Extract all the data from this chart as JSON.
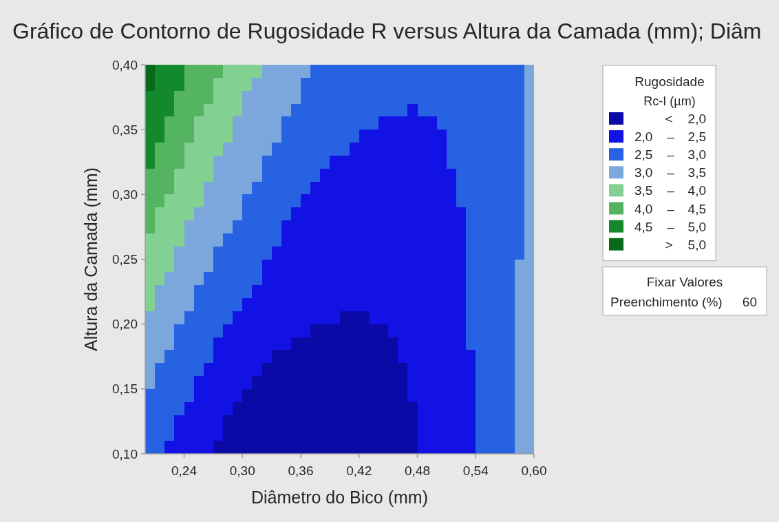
{
  "chart_data": {
    "type": "heatmap",
    "title": "Gráfico de Contorno de Rugosidade R versus Altura da Camada (mm); Diâm",
    "xlabel": "Diâmetro do Bico (mm)",
    "ylabel": "Altura da Camada (mm)",
    "legend_title": "Rugosidade\nRc-I (µm)",
    "annotations": [
      "Fixar Valores",
      "Preenchimento (%)",
      "60"
    ],
    "xlim": [
      0.2,
      0.6
    ],
    "ylim": [
      0.1,
      0.4
    ],
    "xticks": [
      {
        "value": 0.24,
        "label": "0,24"
      },
      {
        "value": 0.3,
        "label": "0,30"
      },
      {
        "value": 0.36,
        "label": "0,36"
      },
      {
        "value": 0.42,
        "label": "0,42"
      },
      {
        "value": 0.48,
        "label": "0,48"
      },
      {
        "value": 0.54,
        "label": "0,54"
      },
      {
        "value": 0.6,
        "label": "0,60"
      }
    ],
    "yticks": [
      {
        "value": 0.1,
        "label": "0,10"
      },
      {
        "value": 0.15,
        "label": "0,15"
      },
      {
        "value": 0.2,
        "label": "0,20"
      },
      {
        "value": 0.25,
        "label": "0,25"
      },
      {
        "value": 0.3,
        "label": "0,30"
      },
      {
        "value": 0.35,
        "label": "0,35"
      },
      {
        "value": 0.4,
        "label": "0,40"
      }
    ],
    "cticks": [
      {
        "value": 1.75,
        "label": "< 2,0"
      },
      {
        "value": 2.25,
        "label": "2,0 – 2,5"
      },
      {
        "value": 2.75,
        "label": "2,5 – 3,0"
      },
      {
        "value": 3.25,
        "label": "3,0 – 3,5"
      },
      {
        "value": 3.75,
        "label": "3,5 – 4,0"
      },
      {
        "value": 4.25,
        "label": "4,0 – 4,5"
      },
      {
        "value": 4.75,
        "label": "4,5 – 5,0"
      },
      {
        "value": 5.25,
        "label": "> 5,0"
      }
    ],
    "colors": [
      "#0c0aa6",
      "#1212e4",
      "#2762e2",
      "#7ca7dc",
      "#82d192",
      "#55b462",
      "#12892c",
      "#066a1a"
    ],
    "cells": [
      [
        5.25,
        4.75,
        4.75,
        4.75,
        4.25,
        4.25,
        4.25,
        4.25,
        3.75,
        3.75,
        3.75,
        3.75,
        3.25,
        3.25,
        3.25,
        3.25,
        3.25,
        2.75,
        2.75,
        2.75,
        2.75,
        2.75,
        2.75,
        2.75,
        2.75,
        2.75,
        2.75,
        2.75,
        2.75,
        2.75,
        2.75,
        2.75,
        2.75,
        2.75,
        2.75,
        2.75,
        2.75,
        2.75,
        2.75,
        3.25
      ],
      [
        5.25,
        4.75,
        4.75,
        4.75,
        4.25,
        4.25,
        4.25,
        3.75,
        3.75,
        3.75,
        3.75,
        3.25,
        3.25,
        3.25,
        3.25,
        3.25,
        2.75,
        2.75,
        2.75,
        2.75,
        2.75,
        2.75,
        2.75,
        2.75,
        2.75,
        2.75,
        2.75,
        2.75,
        2.75,
        2.75,
        2.75,
        2.75,
        2.75,
        2.75,
        2.75,
        2.75,
        2.75,
        2.75,
        2.75,
        3.25
      ],
      [
        4.75,
        4.75,
        4.75,
        4.25,
        4.25,
        4.25,
        4.25,
        3.75,
        3.75,
        3.75,
        3.25,
        3.25,
        3.25,
        3.25,
        3.25,
        3.25,
        2.75,
        2.75,
        2.75,
        2.75,
        2.75,
        2.75,
        2.75,
        2.75,
        2.75,
        2.75,
        2.75,
        2.75,
        2.75,
        2.75,
        2.75,
        2.75,
        2.75,
        2.75,
        2.75,
        2.75,
        2.75,
        2.75,
        2.75,
        3.25
      ],
      [
        4.75,
        4.75,
        4.75,
        4.25,
        4.25,
        4.25,
        3.75,
        3.75,
        3.75,
        3.75,
        3.25,
        3.25,
        3.25,
        3.25,
        3.25,
        2.75,
        2.75,
        2.75,
        2.75,
        2.75,
        2.75,
        2.75,
        2.75,
        2.75,
        2.75,
        2.75,
        2.75,
        2.25,
        2.75,
        2.75,
        2.75,
        2.75,
        2.75,
        2.75,
        2.75,
        2.75,
        2.75,
        2.75,
        2.75,
        3.25
      ],
      [
        4.75,
        4.75,
        4.25,
        4.25,
        4.25,
        3.75,
        3.75,
        3.75,
        3.75,
        3.25,
        3.25,
        3.25,
        3.25,
        3.25,
        2.75,
        2.75,
        2.75,
        2.75,
        2.75,
        2.75,
        2.75,
        2.75,
        2.75,
        2.75,
        2.25,
        2.25,
        2.25,
        2.25,
        2.25,
        2.25,
        2.75,
        2.75,
        2.75,
        2.75,
        2.75,
        2.75,
        2.75,
        2.75,
        2.75,
        3.25
      ],
      [
        4.75,
        4.75,
        4.25,
        4.25,
        4.25,
        3.75,
        3.75,
        3.75,
        3.75,
        3.25,
        3.25,
        3.25,
        3.25,
        3.25,
        2.75,
        2.75,
        2.75,
        2.75,
        2.75,
        2.75,
        2.75,
        2.75,
        2.25,
        2.25,
        2.25,
        2.25,
        2.25,
        2.25,
        2.25,
        2.25,
        2.25,
        2.75,
        2.75,
        2.75,
        2.75,
        2.75,
        2.75,
        2.75,
        2.75,
        3.25
      ],
      [
        4.75,
        4.25,
        4.25,
        4.25,
        3.75,
        3.75,
        3.75,
        3.75,
        3.25,
        3.25,
        3.25,
        3.25,
        3.25,
        2.75,
        2.75,
        2.75,
        2.75,
        2.75,
        2.75,
        2.75,
        2.75,
        2.25,
        2.25,
        2.25,
        2.25,
        2.25,
        2.25,
        2.25,
        2.25,
        2.25,
        2.25,
        2.75,
        2.75,
        2.75,
        2.75,
        2.75,
        2.75,
        2.75,
        2.75,
        3.25
      ],
      [
        4.75,
        4.25,
        4.25,
        4.25,
        3.75,
        3.75,
        3.75,
        3.25,
        3.25,
        3.25,
        3.25,
        3.25,
        2.75,
        2.75,
        2.75,
        2.75,
        2.75,
        2.75,
        2.75,
        2.25,
        2.25,
        2.25,
        2.25,
        2.25,
        2.25,
        2.25,
        2.25,
        2.25,
        2.25,
        2.25,
        2.25,
        2.75,
        2.75,
        2.75,
        2.75,
        2.75,
        2.75,
        2.75,
        2.75,
        3.25
      ],
      [
        4.25,
        4.25,
        4.25,
        3.75,
        3.75,
        3.75,
        3.75,
        3.25,
        3.25,
        3.25,
        3.25,
        3.25,
        2.75,
        2.75,
        2.75,
        2.75,
        2.75,
        2.75,
        2.25,
        2.25,
        2.25,
        2.25,
        2.25,
        2.25,
        2.25,
        2.25,
        2.25,
        2.25,
        2.25,
        2.25,
        2.25,
        2.25,
        2.75,
        2.75,
        2.75,
        2.75,
        2.75,
        2.75,
        2.75,
        3.25
      ],
      [
        4.25,
        4.25,
        4.25,
        3.75,
        3.75,
        3.75,
        3.25,
        3.25,
        3.25,
        3.25,
        3.25,
        2.75,
        2.75,
        2.75,
        2.75,
        2.75,
        2.75,
        2.25,
        2.25,
        2.25,
        2.25,
        2.25,
        2.25,
        2.25,
        2.25,
        2.25,
        2.25,
        2.25,
        2.25,
        2.25,
        2.25,
        2.25,
        2.75,
        2.75,
        2.75,
        2.75,
        2.75,
        2.75,
        2.75,
        3.25
      ],
      [
        4.25,
        4.25,
        3.75,
        3.75,
        3.75,
        3.75,
        3.25,
        3.25,
        3.25,
        3.25,
        2.75,
        2.75,
        2.75,
        2.75,
        2.75,
        2.75,
        2.25,
        2.25,
        2.25,
        2.25,
        2.25,
        2.25,
        2.25,
        2.25,
        2.25,
        2.25,
        2.25,
        2.25,
        2.25,
        2.25,
        2.25,
        2.25,
        2.75,
        2.75,
        2.75,
        2.75,
        2.75,
        2.75,
        2.75,
        3.25
      ],
      [
        4.25,
        3.75,
        3.75,
        3.75,
        3.75,
        3.25,
        3.25,
        3.25,
        3.25,
        3.25,
        2.75,
        2.75,
        2.75,
        2.75,
        2.75,
        2.25,
        2.25,
        2.25,
        2.25,
        2.25,
        2.25,
        2.25,
        2.25,
        2.25,
        2.25,
        2.25,
        2.25,
        2.25,
        2.25,
        2.25,
        2.25,
        2.25,
        2.25,
        2.75,
        2.75,
        2.75,
        2.75,
        2.75,
        2.75,
        3.25
      ],
      [
        4.25,
        3.75,
        3.75,
        3.75,
        3.25,
        3.25,
        3.25,
        3.25,
        3.25,
        2.75,
        2.75,
        2.75,
        2.75,
        2.75,
        2.25,
        2.25,
        2.25,
        2.25,
        2.25,
        2.25,
        2.25,
        2.25,
        2.25,
        2.25,
        2.25,
        2.25,
        2.25,
        2.25,
        2.25,
        2.25,
        2.25,
        2.25,
        2.25,
        2.75,
        2.75,
        2.75,
        2.75,
        2.75,
        2.75,
        3.25
      ],
      [
        3.75,
        3.75,
        3.75,
        3.75,
        3.25,
        3.25,
        3.25,
        3.25,
        2.75,
        2.75,
        2.75,
        2.75,
        2.75,
        2.75,
        2.25,
        2.25,
        2.25,
        2.25,
        2.25,
        2.25,
        2.25,
        2.25,
        2.25,
        2.25,
        2.25,
        2.25,
        2.25,
        2.25,
        2.25,
        2.25,
        2.25,
        2.25,
        2.25,
        2.75,
        2.75,
        2.75,
        2.75,
        2.75,
        2.75,
        3.25
      ],
      [
        3.75,
        3.75,
        3.75,
        3.25,
        3.25,
        3.25,
        3.25,
        2.75,
        2.75,
        2.75,
        2.75,
        2.75,
        2.75,
        2.25,
        2.25,
        2.25,
        2.25,
        2.25,
        2.25,
        2.25,
        2.25,
        2.25,
        2.25,
        2.25,
        2.25,
        2.25,
        2.25,
        2.25,
        2.25,
        2.25,
        2.25,
        2.25,
        2.25,
        2.75,
        2.75,
        2.75,
        2.75,
        2.75,
        2.75,
        3.25
      ],
      [
        3.75,
        3.75,
        3.75,
        3.25,
        3.25,
        3.25,
        3.25,
        2.75,
        2.75,
        2.75,
        2.75,
        2.75,
        2.25,
        2.25,
        2.25,
        2.25,
        2.25,
        2.25,
        2.25,
        2.25,
        2.25,
        2.25,
        2.25,
        2.25,
        2.25,
        2.25,
        2.25,
        2.25,
        2.25,
        2.25,
        2.25,
        2.25,
        2.25,
        2.75,
        2.75,
        2.75,
        2.75,
        2.75,
        3.25,
        3.25
      ],
      [
        3.75,
        3.75,
        3.25,
        3.25,
        3.25,
        3.25,
        2.75,
        2.75,
        2.75,
        2.75,
        2.75,
        2.75,
        2.25,
        2.25,
        2.25,
        2.25,
        2.25,
        2.25,
        2.25,
        2.25,
        2.25,
        2.25,
        2.25,
        2.25,
        2.25,
        2.25,
        2.25,
        2.25,
        2.25,
        2.25,
        2.25,
        2.25,
        2.25,
        2.75,
        2.75,
        2.75,
        2.75,
        2.75,
        3.25,
        3.25
      ],
      [
        3.75,
        3.25,
        3.25,
        3.25,
        3.25,
        2.75,
        2.75,
        2.75,
        2.75,
        2.75,
        2.75,
        2.25,
        2.25,
        2.25,
        2.25,
        2.25,
        2.25,
        2.25,
        2.25,
        2.25,
        2.25,
        2.25,
        2.25,
        2.25,
        2.25,
        2.25,
        2.25,
        2.25,
        2.25,
        2.25,
        2.25,
        2.25,
        2.25,
        2.75,
        2.75,
        2.75,
        2.75,
        2.75,
        3.25,
        3.25
      ],
      [
        3.75,
        3.25,
        3.25,
        3.25,
        3.25,
        2.75,
        2.75,
        2.75,
        2.75,
        2.75,
        2.25,
        2.25,
        2.25,
        2.25,
        2.25,
        2.25,
        2.25,
        2.25,
        2.25,
        2.25,
        2.25,
        2.25,
        2.25,
        2.25,
        2.25,
        2.25,
        2.25,
        2.25,
        2.25,
        2.25,
        2.25,
        2.25,
        2.25,
        2.75,
        2.75,
        2.75,
        2.75,
        2.75,
        3.25,
        3.25
      ],
      [
        3.25,
        3.25,
        3.25,
        3.25,
        2.75,
        2.75,
        2.75,
        2.75,
        2.75,
        2.25,
        2.25,
        2.25,
        2.25,
        2.25,
        2.25,
        2.25,
        2.25,
        2.25,
        2.25,
        2.25,
        1.75,
        1.75,
        1.75,
        2.25,
        2.25,
        2.25,
        2.25,
        2.25,
        2.25,
        2.25,
        2.25,
        2.25,
        2.25,
        2.75,
        2.75,
        2.75,
        2.75,
        2.75,
        3.25,
        3.25
      ],
      [
        3.25,
        3.25,
        3.25,
        2.75,
        2.75,
        2.75,
        2.75,
        2.75,
        2.25,
        2.25,
        2.25,
        2.25,
        2.25,
        2.25,
        2.25,
        2.25,
        2.25,
        1.75,
        1.75,
        1.75,
        1.75,
        1.75,
        1.75,
        1.75,
        1.75,
        2.25,
        2.25,
        2.25,
        2.25,
        2.25,
        2.25,
        2.25,
        2.25,
        2.75,
        2.75,
        2.75,
        2.75,
        2.75,
        3.25,
        3.25
      ],
      [
        3.25,
        3.25,
        3.25,
        2.75,
        2.75,
        2.75,
        2.75,
        2.25,
        2.25,
        2.25,
        2.25,
        2.25,
        2.25,
        2.25,
        2.25,
        1.75,
        1.75,
        1.75,
        1.75,
        1.75,
        1.75,
        1.75,
        1.75,
        1.75,
        1.75,
        1.75,
        2.25,
        2.25,
        2.25,
        2.25,
        2.25,
        2.25,
        2.25,
        2.75,
        2.75,
        2.75,
        2.75,
        2.75,
        3.25,
        3.25
      ],
      [
        3.25,
        3.25,
        2.75,
        2.75,
        2.75,
        2.75,
        2.75,
        2.25,
        2.25,
        2.25,
        2.25,
        2.25,
        2.25,
        1.75,
        1.75,
        1.75,
        1.75,
        1.75,
        1.75,
        1.75,
        1.75,
        1.75,
        1.75,
        1.75,
        1.75,
        1.75,
        2.25,
        2.25,
        2.25,
        2.25,
        2.25,
        2.25,
        2.25,
        2.25,
        2.75,
        2.75,
        2.75,
        2.75,
        3.25,
        3.25
      ],
      [
        3.25,
        2.75,
        2.75,
        2.75,
        2.75,
        2.75,
        2.25,
        2.25,
        2.25,
        2.25,
        2.25,
        2.25,
        1.75,
        1.75,
        1.75,
        1.75,
        1.75,
        1.75,
        1.75,
        1.75,
        1.75,
        1.75,
        1.75,
        1.75,
        1.75,
        1.75,
        1.75,
        2.25,
        2.25,
        2.25,
        2.25,
        2.25,
        2.25,
        2.25,
        2.75,
        2.75,
        2.75,
        2.75,
        3.25,
        3.25
      ],
      [
        3.25,
        2.75,
        2.75,
        2.75,
        2.75,
        2.25,
        2.25,
        2.25,
        2.25,
        2.25,
        2.25,
        1.75,
        1.75,
        1.75,
        1.75,
        1.75,
        1.75,
        1.75,
        1.75,
        1.75,
        1.75,
        1.75,
        1.75,
        1.75,
        1.75,
        1.75,
        1.75,
        2.25,
        2.25,
        2.25,
        2.25,
        2.25,
        2.25,
        2.25,
        2.75,
        2.75,
        2.75,
        2.75,
        3.25,
        3.25
      ],
      [
        2.75,
        2.75,
        2.75,
        2.75,
        2.75,
        2.25,
        2.25,
        2.25,
        2.25,
        2.25,
        1.75,
        1.75,
        1.75,
        1.75,
        1.75,
        1.75,
        1.75,
        1.75,
        1.75,
        1.75,
        1.75,
        1.75,
        1.75,
        1.75,
        1.75,
        1.75,
        1.75,
        2.25,
        2.25,
        2.25,
        2.25,
        2.25,
        2.25,
        2.25,
        2.75,
        2.75,
        2.75,
        2.75,
        3.25,
        3.25
      ],
      [
        2.75,
        2.75,
        2.75,
        2.75,
        2.25,
        2.25,
        2.25,
        2.25,
        2.25,
        1.75,
        1.75,
        1.75,
        1.75,
        1.75,
        1.75,
        1.75,
        1.75,
        1.75,
        1.75,
        1.75,
        1.75,
        1.75,
        1.75,
        1.75,
        1.75,
        1.75,
        1.75,
        1.75,
        2.25,
        2.25,
        2.25,
        2.25,
        2.25,
        2.25,
        2.75,
        2.75,
        2.75,
        2.75,
        3.25,
        3.25
      ],
      [
        2.75,
        2.75,
        2.75,
        2.25,
        2.25,
        2.25,
        2.25,
        2.25,
        1.75,
        1.75,
        1.75,
        1.75,
        1.75,
        1.75,
        1.75,
        1.75,
        1.75,
        1.75,
        1.75,
        1.75,
        1.75,
        1.75,
        1.75,
        1.75,
        1.75,
        1.75,
        1.75,
        1.75,
        2.25,
        2.25,
        2.25,
        2.25,
        2.25,
        2.25,
        2.75,
        2.75,
        2.75,
        2.75,
        3.25,
        3.25
      ],
      [
        2.75,
        2.75,
        2.75,
        2.25,
        2.25,
        2.25,
        2.25,
        2.25,
        1.75,
        1.75,
        1.75,
        1.75,
        1.75,
        1.75,
        1.75,
        1.75,
        1.75,
        1.75,
        1.75,
        1.75,
        1.75,
        1.75,
        1.75,
        1.75,
        1.75,
        1.75,
        1.75,
        1.75,
        2.25,
        2.25,
        2.25,
        2.25,
        2.25,
        2.25,
        2.75,
        2.75,
        2.75,
        2.75,
        3.25,
        3.25
      ],
      [
        2.75,
        2.75,
        2.25,
        2.25,
        2.25,
        2.25,
        2.25,
        1.75,
        1.75,
        1.75,
        1.75,
        1.75,
        1.75,
        1.75,
        1.75,
        1.75,
        1.75,
        1.75,
        1.75,
        1.75,
        1.75,
        1.75,
        1.75,
        1.75,
        1.75,
        1.75,
        1.75,
        1.75,
        2.25,
        2.25,
        2.25,
        2.25,
        2.25,
        2.25,
        2.75,
        2.75,
        2.75,
        2.75,
        3.25,
        3.25
      ]
    ]
  }
}
